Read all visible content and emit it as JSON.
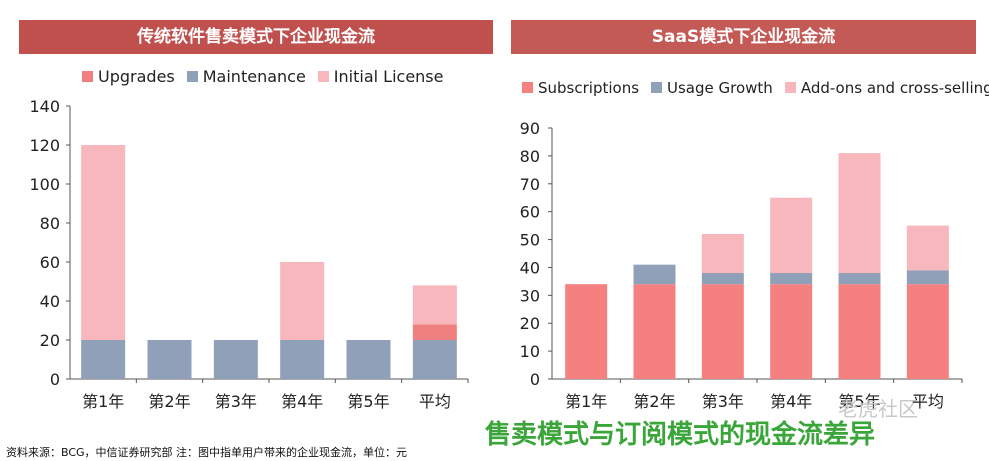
{
  "chart_data": [
    {
      "type": "bar",
      "stacked": true,
      "title": "传统软件售卖模式下企业现金流",
      "categories": [
        "第1年",
        "第2年",
        "第3年",
        "第4年",
        "第5年",
        "平均"
      ],
      "series": [
        {
          "name": "Upgrades",
          "color": "#f08080",
          "values": [
            0,
            0,
            0,
            0,
            0,
            8
          ]
        },
        {
          "name": "Maintenance",
          "color": "#8fa0b8",
          "values": [
            20,
            20,
            20,
            20,
            20,
            20
          ]
        },
        {
          "name": "Initial License",
          "color": "#f7b7bc",
          "values": [
            100,
            0,
            0,
            40,
            0,
            20
          ]
        }
      ],
      "stack_order": [
        1,
        0,
        2
      ],
      "legend_order": [
        0,
        1,
        2
      ],
      "ylim": [
        0,
        140
      ],
      "yticks": [
        0,
        20,
        40,
        60,
        80,
        100,
        120,
        140
      ],
      "legend_position": "top",
      "grid": false
    },
    {
      "type": "bar",
      "stacked": true,
      "title": "SaaS模式下企业现金流",
      "categories": [
        "第1年",
        "第2年",
        "第3年",
        "第4年",
        "第5年",
        "平均"
      ],
      "series": [
        {
          "name": "Subscriptions",
          "color": "#f58080",
          "values": [
            34,
            34,
            34,
            34,
            34,
            34
          ]
        },
        {
          "name": "Usage Growth",
          "color": "#8fa0b8",
          "values": [
            0,
            7,
            4,
            4,
            4,
            5
          ]
        },
        {
          "name": "Add-ons and cross-selling",
          "color": "#f7b7bc",
          "values": [
            0,
            0,
            14,
            27,
            43,
            16
          ]
        }
      ],
      "stack_order": [
        0,
        1,
        2
      ],
      "legend_order": [
        0,
        1,
        2
      ],
      "ylim": [
        0,
        90
      ],
      "yticks": [
        0,
        10,
        20,
        30,
        40,
        50,
        60,
        70,
        80,
        90
      ],
      "legend_position": "top",
      "grid": false
    }
  ],
  "footnote": "资料来源：BCG，中信证券研究部   注：图中指单用户带来的企业现金流，单位：元",
  "caption": "售卖模式与订阅模式的现金流差异",
  "watermark": "老虎社区"
}
